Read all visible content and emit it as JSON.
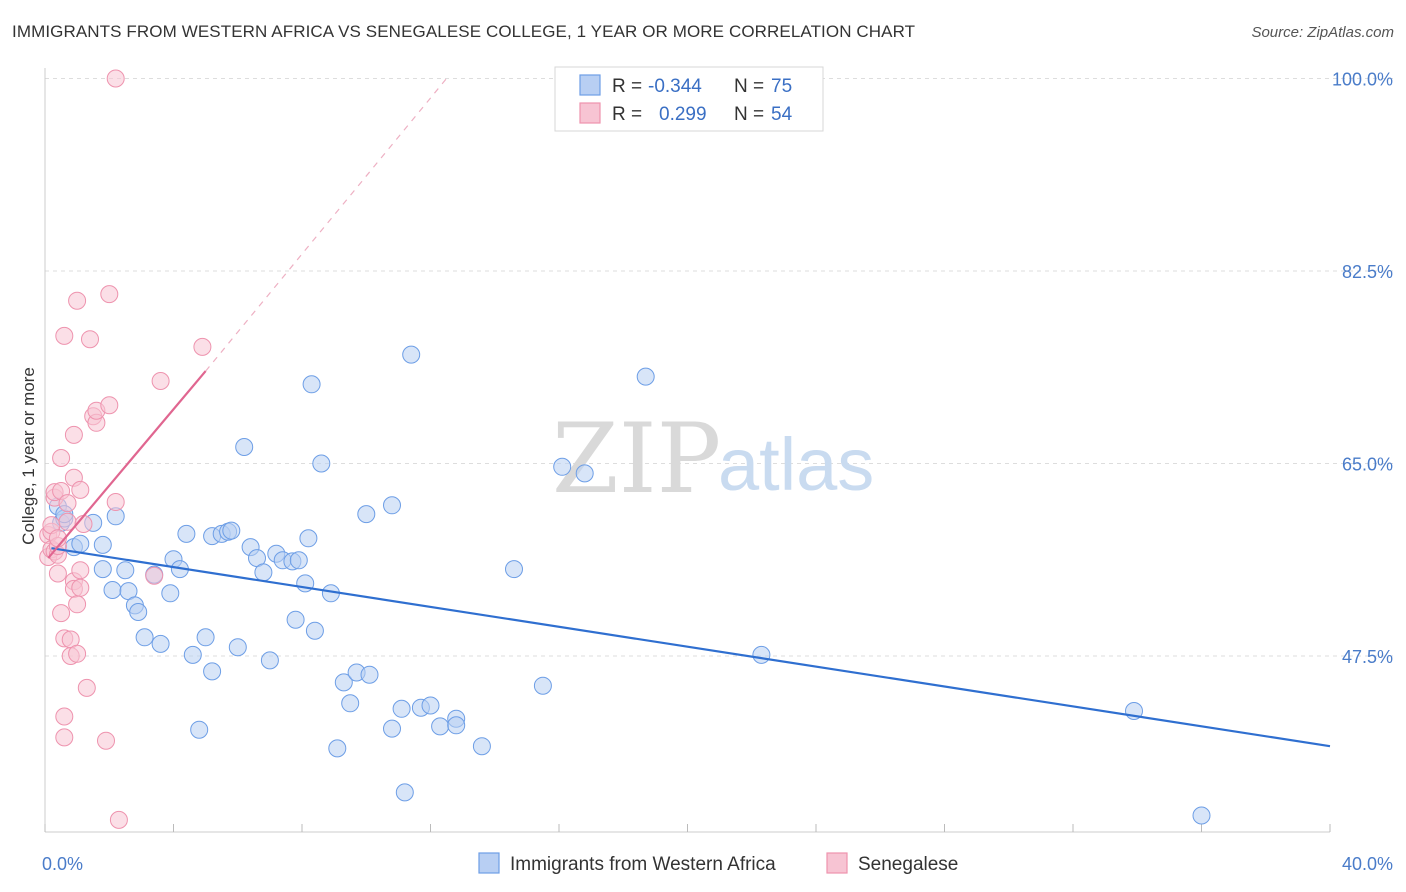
{
  "header": {
    "title": "IMMIGRANTS FROM WESTERN AFRICA VS SENEGALESE COLLEGE, 1 YEAR OR MORE CORRELATION CHART",
    "source": "Source: ZipAtlas.com"
  },
  "watermark": {
    "zip": "ZIP",
    "atlas": "atlas"
  },
  "legend": {
    "rows": [
      {
        "r_label": "R =",
        "r_value": "-0.344",
        "n_label": "N =",
        "n_value": "75",
        "color": "#6d9ee6"
      },
      {
        "r_label": "R =",
        "r_value": "0.299",
        "n_label": "N =",
        "n_value": "54",
        "color": "#ee93ae"
      }
    ]
  },
  "chart_data": {
    "type": "scatter",
    "title": "IMMIGRANTS FROM WESTERN AFRICA VS SENEGALESE COLLEGE, 1 YEAR OR MORE CORRELATION CHART",
    "xlabel": "",
    "ylabel": "College, 1 year or more",
    "x_tick_labels": [
      "0.0%",
      "40.0%"
    ],
    "y_tick_labels": [
      "100.0%",
      "82.5%",
      "65.0%",
      "47.5%"
    ],
    "y_ticks": [
      100.0,
      82.5,
      65.0,
      47.5
    ],
    "xlim": [
      0,
      40
    ],
    "ylim": [
      31.5,
      101.5
    ],
    "grid": true,
    "legend_position": "top-center",
    "series": [
      {
        "name": "Immigrants from Western Africa",
        "color": "#6d9ee6",
        "fill": "#b8cff3",
        "trend": {
          "x0": 0.2,
          "y0": 57.3,
          "x1": 40.0,
          "y1": 39.3
        },
        "points": [
          [
            0.4,
            61.1
          ],
          [
            0.5,
            59.6
          ],
          [
            0.6,
            60.0
          ],
          [
            0.6,
            60.4
          ],
          [
            0.9,
            57.4
          ],
          [
            1.1,
            57.7
          ],
          [
            1.5,
            59.6
          ],
          [
            1.8,
            57.6
          ],
          [
            1.8,
            55.4
          ],
          [
            2.1,
            53.5
          ],
          [
            2.2,
            60.2
          ],
          [
            2.5,
            55.3
          ],
          [
            2.6,
            53.4
          ],
          [
            2.8,
            52.1
          ],
          [
            2.9,
            51.5
          ],
          [
            3.1,
            49.2
          ],
          [
            3.4,
            54.9
          ],
          [
            3.6,
            48.6
          ],
          [
            3.9,
            53.2
          ],
          [
            4.0,
            56.3
          ],
          [
            4.2,
            55.4
          ],
          [
            4.4,
            58.6
          ],
          [
            4.6,
            47.6
          ],
          [
            4.8,
            40.8
          ],
          [
            5.0,
            49.2
          ],
          [
            5.2,
            46.1
          ],
          [
            5.2,
            58.4
          ],
          [
            5.5,
            58.6
          ],
          [
            5.7,
            58.8
          ],
          [
            5.8,
            58.9
          ],
          [
            6.0,
            48.3
          ],
          [
            6.2,
            66.5
          ],
          [
            6.4,
            57.4
          ],
          [
            6.6,
            56.4
          ],
          [
            6.8,
            55.1
          ],
          [
            7.0,
            47.1
          ],
          [
            7.2,
            56.8
          ],
          [
            7.4,
            56.2
          ],
          [
            7.7,
            56.1
          ],
          [
            7.8,
            50.8
          ],
          [
            7.9,
            56.2
          ],
          [
            8.1,
            54.1
          ],
          [
            8.2,
            58.2
          ],
          [
            8.3,
            72.2
          ],
          [
            8.4,
            49.8
          ],
          [
            8.6,
            65.0
          ],
          [
            8.9,
            53.2
          ],
          [
            9.1,
            39.1
          ],
          [
            9.3,
            45.1
          ],
          [
            9.5,
            43.2
          ],
          [
            9.7,
            46.0
          ],
          [
            10.0,
            60.4
          ],
          [
            10.1,
            45.8
          ],
          [
            10.8,
            40.9
          ],
          [
            10.8,
            61.2
          ],
          [
            11.1,
            42.7
          ],
          [
            11.2,
            35.1
          ],
          [
            11.4,
            74.9
          ],
          [
            11.7,
            42.8
          ],
          [
            12.0,
            43.0
          ],
          [
            12.3,
            41.1
          ],
          [
            12.8,
            41.8
          ],
          [
            12.8,
            41.2
          ],
          [
            13.6,
            39.3
          ],
          [
            14.6,
            55.4
          ],
          [
            15.5,
            44.8
          ],
          [
            16.1,
            64.7
          ],
          [
            16.8,
            64.1
          ],
          [
            18.7,
            72.9
          ],
          [
            22.3,
            47.6
          ],
          [
            33.9,
            42.5
          ],
          [
            36.0,
            33.0
          ]
        ]
      },
      {
        "name": "Senegalese",
        "color": "#ee93ae",
        "fill": "#f7c4d3",
        "trend": {
          "x0": 0.1,
          "y0": 56.4,
          "x1": 5.0,
          "y1": 73.4
        },
        "trend_extension": {
          "x0": 5.0,
          "y0": 73.4,
          "x1": 12.5,
          "y1": 100.0
        },
        "points": [
          [
            0.1,
            56.5
          ],
          [
            0.1,
            58.5
          ],
          [
            0.2,
            57.2
          ],
          [
            0.2,
            58.8
          ],
          [
            0.2,
            59.4
          ],
          [
            0.3,
            57.0
          ],
          [
            0.3,
            61.9
          ],
          [
            0.3,
            62.4
          ],
          [
            0.4,
            55.0
          ],
          [
            0.4,
            56.7
          ],
          [
            0.4,
            57.5
          ],
          [
            0.4,
            58.2
          ],
          [
            0.5,
            62.5
          ],
          [
            0.5,
            65.5
          ],
          [
            0.5,
            51.4
          ],
          [
            0.6,
            49.1
          ],
          [
            0.6,
            76.6
          ],
          [
            0.6,
            42.0
          ],
          [
            0.6,
            40.1
          ],
          [
            0.7,
            59.7
          ],
          [
            0.7,
            61.4
          ],
          [
            0.8,
            49.0
          ],
          [
            0.8,
            47.5
          ],
          [
            0.9,
            54.3
          ],
          [
            0.9,
            53.6
          ],
          [
            0.9,
            63.7
          ],
          [
            0.9,
            67.6
          ],
          [
            1.0,
            47.7
          ],
          [
            1.0,
            52.2
          ],
          [
            1.1,
            55.3
          ],
          [
            1.1,
            53.7
          ],
          [
            1.1,
            62.6
          ],
          [
            1.0,
            79.8
          ],
          [
            1.2,
            59.5
          ],
          [
            1.3,
            44.6
          ],
          [
            1.4,
            76.3
          ],
          [
            1.5,
            69.3
          ],
          [
            1.6,
            68.7
          ],
          [
            1.6,
            69.8
          ],
          [
            1.9,
            39.8
          ],
          [
            2.0,
            70.3
          ],
          [
            2.2,
            61.5
          ],
          [
            2.2,
            100.0
          ],
          [
            2.0,
            80.4
          ],
          [
            2.3,
            32.6
          ],
          [
            3.4,
            54.8
          ],
          [
            3.6,
            72.5
          ],
          [
            4.9,
            75.6
          ]
        ]
      }
    ]
  },
  "bottom_legend": {
    "items": [
      {
        "label": "Immigrants from Western Africa",
        "color": "#b8cff3",
        "stroke": "#6d9ee6"
      },
      {
        "label": "Senegalese",
        "color": "#f7c4d3",
        "stroke": "#ee93ae"
      }
    ]
  }
}
